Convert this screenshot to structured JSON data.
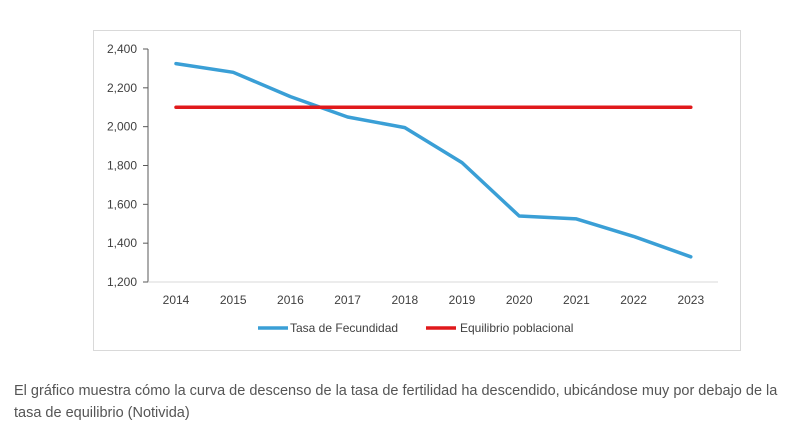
{
  "chart_data": {
    "type": "line",
    "categories": [
      "2014",
      "2015",
      "2016",
      "2017",
      "2018",
      "2019",
      "2020",
      "2021",
      "2022",
      "2023"
    ],
    "ylim": [
      1200,
      2400
    ],
    "yticks": [
      1200,
      1400,
      1600,
      1800,
      2000,
      2200,
      2400
    ],
    "ytick_labels": [
      "1,200",
      "1,400",
      "1,600",
      "1,800",
      "2,000",
      "2,200",
      "2,400"
    ],
    "grid": false,
    "legend_position": "bottom",
    "series": [
      {
        "name": "Tasa de Fecundidad",
        "color": "#3a9fd6",
        "values": [
          2325,
          2280,
          2155,
          2050,
          1995,
          1815,
          1540,
          1525,
          1435,
          1330
        ]
      },
      {
        "name": "Equilibrio poblacional",
        "color": "#e0191b",
        "values": [
          2100,
          2100,
          2100,
          2100,
          2100,
          2100,
          2100,
          2100,
          2100,
          2100
        ]
      }
    ]
  },
  "caption": "El gráfico muestra cómo la curva de descenso de la tasa de fertilidad ha descendido, ubicándose muy por debajo de la tasa de equilibrio (Notivida)"
}
